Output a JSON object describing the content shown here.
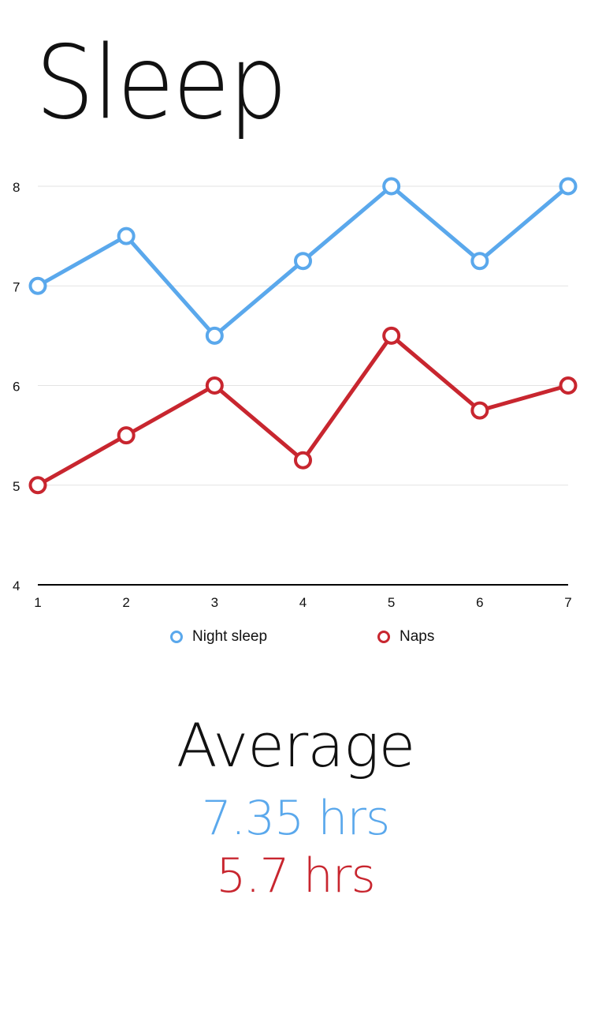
{
  "header": {
    "title": "Sleep"
  },
  "colors": {
    "night": "#5aa8ec",
    "naps": "#c8262f",
    "grid": "#e3e3e3",
    "axis": "#000000"
  },
  "chart_data": {
    "type": "line",
    "x": [
      1,
      2,
      3,
      4,
      5,
      6,
      7
    ],
    "series": [
      {
        "name": "Night sleep",
        "values": [
          7,
          7.5,
          6.5,
          7.25,
          8,
          7.25,
          8
        ]
      },
      {
        "name": "Naps",
        "values": [
          5,
          5.5,
          6,
          5.25,
          6.5,
          5.75,
          6
        ]
      }
    ],
    "ylim": [
      4,
      8
    ],
    "yticks": [
      4,
      5,
      6,
      7,
      8
    ],
    "xticks": [
      1,
      2,
      3,
      4,
      5,
      6,
      7
    ],
    "grid": true,
    "legend_position": "bottom-center"
  },
  "summary": {
    "heading": "Average",
    "night_value": "7.35 hrs",
    "naps_value": "5.7 hrs"
  }
}
